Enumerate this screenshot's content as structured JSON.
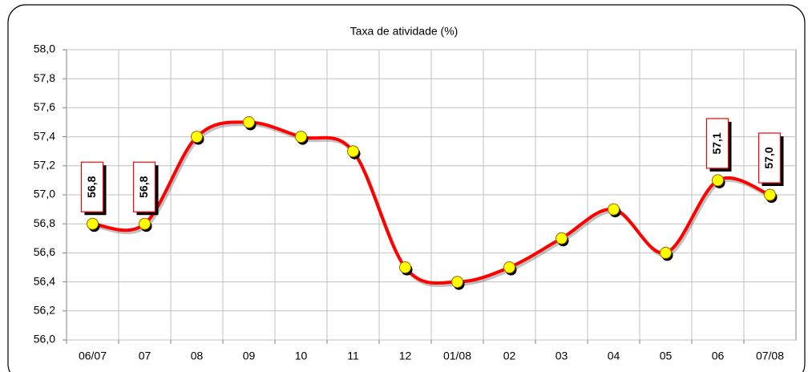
{
  "chart_data": {
    "type": "line",
    "title": "Taxa de atividade (%)",
    "categories": [
      "06/07",
      "07",
      "08",
      "09",
      "10",
      "11",
      "12",
      "01/08",
      "02",
      "03",
      "04",
      "05",
      "06",
      "07/08"
    ],
    "series": [
      {
        "name": "Taxa de atividade",
        "color": "#ff0000",
        "marker_color": "#ffff00",
        "values": [
          56.8,
          56.8,
          57.4,
          57.5,
          57.4,
          57.3,
          56.5,
          56.4,
          56.5,
          56.7,
          56.9,
          56.6,
          57.1,
          57.0
        ],
        "value_labels": [
          "56,8",
          "56,8",
          null,
          null,
          null,
          null,
          null,
          null,
          null,
          null,
          null,
          null,
          "57,1",
          "57,0"
        ]
      }
    ],
    "ylim": [
      56.0,
      58.0
    ],
    "yticks": [
      {
        "value": 56.0,
        "label": "56,0"
      },
      {
        "value": 56.2,
        "label": "56,2"
      },
      {
        "value": 56.4,
        "label": "56,4"
      },
      {
        "value": 56.6,
        "label": "56,6"
      },
      {
        "value": 56.8,
        "label": "56,8"
      },
      {
        "value": 57.0,
        "label": "57,0"
      },
      {
        "value": 57.2,
        "label": "57,2"
      },
      {
        "value": 57.4,
        "label": "57,4"
      },
      {
        "value": 57.6,
        "label": "57,6"
      },
      {
        "value": 57.8,
        "label": "57,8"
      },
      {
        "value": 58.0,
        "label": "58,0"
      }
    ],
    "grid": true
  }
}
